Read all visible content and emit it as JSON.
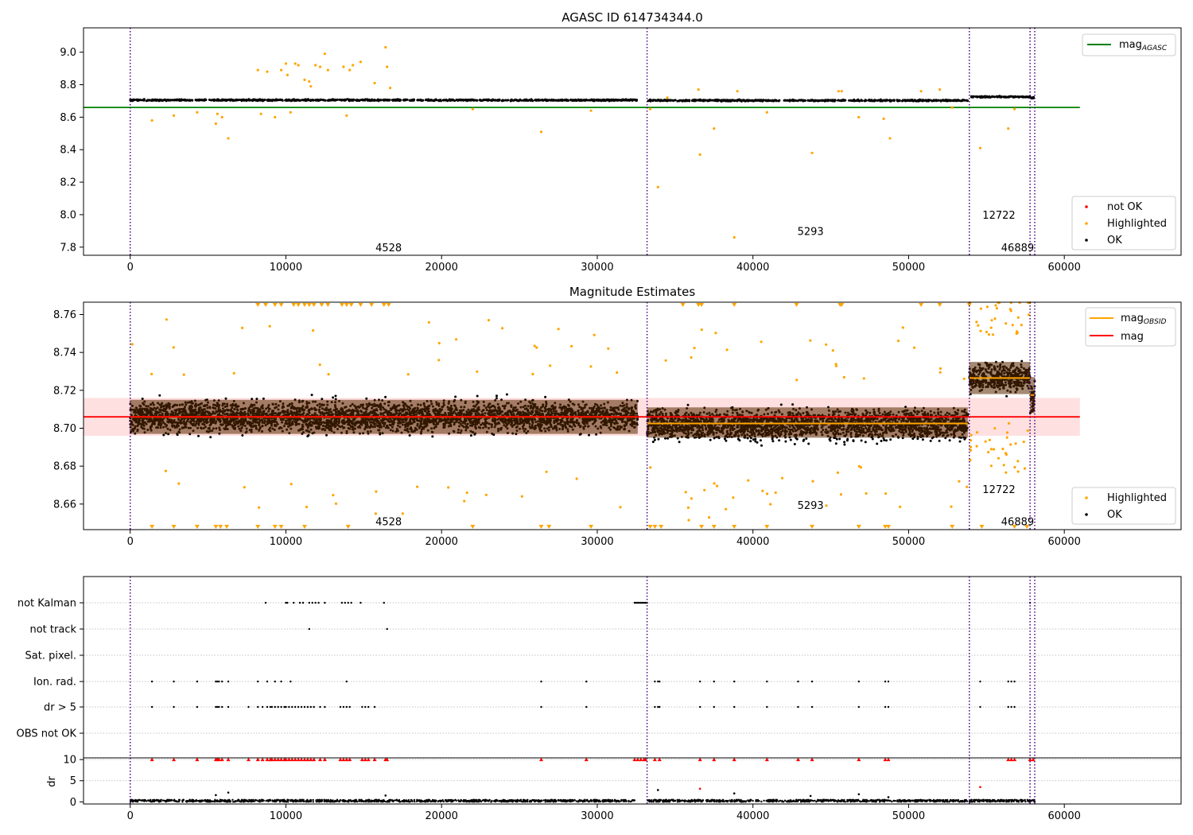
{
  "chart_data": [
    {
      "type": "scatter",
      "title": "AGASC ID 614734344.0",
      "xlim": [
        -3000,
        67500
      ],
      "ylim": [
        7.75,
        9.15
      ],
      "xticks": [
        0,
        10000,
        20000,
        30000,
        40000,
        50000,
        60000
      ],
      "yticks": [
        7.8,
        8.0,
        8.2,
        8.4,
        8.6,
        8.8,
        9.0
      ],
      "ytick_labels": [
        "7.8",
        "8.0",
        "8.2",
        "8.4",
        "8.6",
        "8.8",
        "9.0"
      ],
      "obs_boundaries": [
        0,
        33200,
        53900,
        57800,
        58100
      ],
      "obs_labels": [
        {
          "text": "4528",
          "x": 16600,
          "y": 7.8
        },
        {
          "text": "5293",
          "x": 43700,
          "y": 7.9
        },
        {
          "text": "12722",
          "x": 55800,
          "y": 8.0
        },
        {
          "text": "46889",
          "x": 57000,
          "y": 7.8
        }
      ],
      "reference_line": {
        "name": "mag_AGASC",
        "y": 8.66,
        "x": [
          -3000,
          61000
        ],
        "color": "#008000"
      },
      "ok_segments": [
        {
          "x": [
            0,
            32600
          ],
          "y": 8.705,
          "spread": 0.012
        },
        {
          "x": [
            33200,
            53800
          ],
          "y": 8.703,
          "spread": 0.012
        },
        {
          "x": [
            53900,
            57800
          ],
          "y": 8.725,
          "spread": 0.01
        },
        {
          "x": [
            57800,
            58100
          ],
          "y": 8.72,
          "spread": 0.012
        }
      ],
      "highlighted_points": [
        [
          1400,
          8.58
        ],
        [
          2800,
          8.61
        ],
        [
          4300,
          8.63
        ],
        [
          5500,
          8.56
        ],
        [
          5600,
          8.62
        ],
        [
          5900,
          8.6
        ],
        [
          6300,
          8.47
        ],
        [
          8200,
          8.89
        ],
        [
          8800,
          8.88
        ],
        [
          8400,
          8.62
        ],
        [
          9300,
          8.6
        ],
        [
          9700,
          8.89
        ],
        [
          10000,
          8.93
        ],
        [
          10100,
          8.86
        ],
        [
          10300,
          8.63
        ],
        [
          10600,
          8.93
        ],
        [
          10800,
          8.92
        ],
        [
          11200,
          8.83
        ],
        [
          11500,
          8.82
        ],
        [
          11600,
          8.79
        ],
        [
          11900,
          8.92
        ],
        [
          12200,
          8.91
        ],
        [
          12500,
          8.99
        ],
        [
          12700,
          8.89
        ],
        [
          13700,
          8.91
        ],
        [
          13900,
          8.61
        ],
        [
          14100,
          8.89
        ],
        [
          14300,
          8.92
        ],
        [
          14800,
          8.94
        ],
        [
          15700,
          8.81
        ],
        [
          16400,
          9.03
        ],
        [
          16500,
          8.91
        ],
        [
          16700,
          8.78
        ],
        [
          22000,
          8.65
        ],
        [
          26400,
          8.51
        ],
        [
          29600,
          8.64
        ],
        [
          33400,
          8.65
        ],
        [
          33900,
          8.17
        ],
        [
          34500,
          8.72
        ],
        [
          36500,
          8.77
        ],
        [
          36600,
          8.37
        ],
        [
          37500,
          8.53
        ],
        [
          38800,
          7.86
        ],
        [
          39000,
          8.76
        ],
        [
          40900,
          8.63
        ],
        [
          43800,
          8.38
        ],
        [
          45500,
          8.76
        ],
        [
          45700,
          8.76
        ],
        [
          46800,
          8.6
        ],
        [
          48400,
          8.59
        ],
        [
          48800,
          8.47
        ],
        [
          50800,
          8.76
        ],
        [
          52000,
          8.77
        ],
        [
          52800,
          8.66
        ],
        [
          54600,
          8.41
        ],
        [
          56400,
          8.53
        ],
        [
          56800,
          8.65
        ]
      ],
      "legend": [
        {
          "label": "not OK",
          "color": "#ff0000"
        },
        {
          "label": "Highlighted",
          "color": "#ffa500"
        },
        {
          "label": "OK",
          "color": "#000000"
        }
      ]
    },
    {
      "type": "scatter",
      "title": "Magnitude Estimates",
      "xlim": [
        -3000,
        67500
      ],
      "ylim": [
        8.6465,
        8.7665
      ],
      "xticks": [
        0,
        10000,
        20000,
        30000,
        40000,
        50000,
        60000
      ],
      "yticks": [
        8.66,
        8.68,
        8.7,
        8.72,
        8.74,
        8.76
      ],
      "ytick_labels": [
        "8.66",
        "8.68",
        "8.70",
        "8.72",
        "8.74",
        "8.76"
      ],
      "obs_boundaries": [
        0,
        33200,
        53900,
        57800,
        58100
      ],
      "obs_labels": [
        {
          "text": "4528",
          "x": 16600,
          "y": 8.651
        },
        {
          "text": "5293",
          "x": 43700,
          "y": 8.6595
        },
        {
          "text": "12722",
          "x": 55800,
          "y": 8.668
        },
        {
          "text": "46889",
          "x": 57000,
          "y": 8.651
        }
      ],
      "mag_line": {
        "name": "mag",
        "y": 8.706,
        "band": [
          8.696,
          8.716
        ],
        "x": [
          -3000,
          61000
        ],
        "color": "#ff0000"
      },
      "mag_obsid": [
        {
          "x": [
            0,
            32600
          ],
          "y": 8.706,
          "band": [
            8.697,
            8.715
          ]
        },
        {
          "x": [
            33200,
            53800
          ],
          "y": 8.7025,
          "band": [
            8.695,
            8.711
          ]
        },
        {
          "x": [
            53900,
            57800
          ],
          "y": 8.7265,
          "band": [
            8.718,
            8.735
          ]
        },
        {
          "x": [
            57800,
            58100
          ],
          "y": 8.7175,
          "band": [
            8.708,
            8.727
          ]
        }
      ],
      "ok_clouds": [
        {
          "x": [
            0,
            32600
          ],
          "center": 8.706,
          "spread": 0.014
        },
        {
          "x": [
            33200,
            53800
          ],
          "center": 8.702,
          "spread": 0.014
        },
        {
          "x": [
            53900,
            57800
          ],
          "center": 8.727,
          "spread": 0.012
        },
        {
          "x": [
            57800,
            58100
          ],
          "center": 8.716,
          "spread": 0.014
        }
      ],
      "highlighted_top_markers": [
        8200,
        8700,
        9300,
        9700,
        10500,
        10800,
        11200,
        11500,
        11800,
        12300,
        12700,
        13600,
        13900,
        14200,
        14800,
        15500,
        16300,
        16600,
        35500,
        36500,
        36700,
        38800,
        42800,
        45600,
        45700,
        50800,
        52000,
        53900
      ],
      "highlighted_bottom_markers": [
        1400,
        2800,
        4300,
        5500,
        5800,
        6200,
        8200,
        9300,
        9700,
        11200,
        14000,
        22000,
        26400,
        26900,
        29600,
        33400,
        33700,
        34100,
        36700,
        37500,
        38800,
        40900,
        43800,
        46800,
        48500,
        48700,
        52800,
        54700,
        56800,
        57600
      ],
      "legend": [
        {
          "label": "Highlighted",
          "color": "#ffa500"
        },
        {
          "label": "OK",
          "color": "#000000"
        }
      ],
      "legend_lines": [
        {
          "label": "mag_OBSID",
          "color": "#ffa500"
        },
        {
          "label": "mag",
          "color": "#ff0000"
        }
      ]
    },
    {
      "type": "scatter",
      "title": "",
      "xlim": [
        -3000,
        67500
      ],
      "xticks": [
        0,
        10000,
        20000,
        30000,
        40000,
        50000,
        60000
      ],
      "categories": [
        "not Kalman",
        "not track",
        "Sat. pixel.",
        "Ion. rad.",
        "dr > 5",
        "OBS not OK"
      ],
      "obs_boundaries": [
        0,
        33200,
        53900,
        57800,
        58100
      ],
      "flags": {
        "not Kalman": [
          8700,
          10000,
          10100,
          10500,
          10900,
          11100,
          11500,
          11700,
          11900,
          12100,
          12500,
          13600,
          13800,
          14000,
          14200,
          14800,
          16300,
          32400,
          32500,
          32600,
          32700,
          32800,
          32900,
          33000,
          33100,
          33200,
          57800
        ],
        "not track": [
          11500,
          16500
        ],
        "Sat. pixel.": [],
        "Ion. rad.": [
          1400,
          2800,
          4300,
          5500,
          5600,
          5700,
          5900,
          6300,
          8200,
          8800,
          9300,
          9700,
          10300,
          13900,
          26400,
          29300,
          33700,
          33900,
          34000,
          36600,
          37500,
          38800,
          40900,
          42900,
          43800,
          46800,
          48500,
          48700,
          54600,
          56400,
          56600,
          56800
        ],
        "dr > 5": [
          1400,
          2800,
          4300,
          5500,
          5600,
          5700,
          5900,
          6300,
          7600,
          8200,
          8500,
          8800,
          9000,
          9100,
          9300,
          9500,
          9700,
          9900,
          10000,
          10200,
          10400,
          10600,
          10800,
          11000,
          11200,
          11400,
          11600,
          11800,
          12200,
          12500,
          13500,
          13700,
          13900,
          14100,
          14900,
          15100,
          15300,
          15700,
          26400,
          29300,
          33700,
          33900,
          34000,
          36600,
          37500,
          38800,
          40900,
          42900,
          43800,
          46800,
          48500,
          48700,
          54600,
          56400,
          56600,
          56800
        ],
        "OBS not OK": []
      }
    },
    {
      "type": "scatter",
      "title": "",
      "ylabel": "dr",
      "xlim": [
        -3000,
        67500
      ],
      "ylim": [
        -0.5,
        10.4
      ],
      "xticks": [
        0,
        10000,
        20000,
        30000,
        40000,
        50000,
        60000
      ],
      "xtick_labels": [
        "0",
        "10000",
        "20000",
        "30000",
        "40000",
        "50000",
        "60000"
      ],
      "yticks": [
        0,
        5,
        10
      ],
      "ytick_labels": [
        "0",
        "5",
        "10"
      ],
      "obs_boundaries": [
        0,
        33200,
        53900,
        57800,
        58100
      ],
      "clipped_markers": [
        1400,
        2800,
        4300,
        5500,
        5600,
        5700,
        5900,
        6300,
        7600,
        8200,
        8500,
        8800,
        9000,
        9100,
        9300,
        9500,
        9700,
        9900,
        10000,
        10200,
        10400,
        10600,
        10800,
        11000,
        11200,
        11400,
        11600,
        11800,
        12200,
        12500,
        13500,
        13700,
        13900,
        14100,
        14900,
        15100,
        15300,
        15700,
        16400,
        16500,
        26400,
        29300,
        32400,
        32600,
        32800,
        33000,
        33100,
        33700,
        34000,
        36600,
        37500,
        38800,
        40900,
        42900,
        43800,
        46800,
        48500,
        48700,
        56400,
        56600,
        56800,
        57800,
        58000
      ],
      "outliers": [
        [
          5500,
          1.6
        ],
        [
          6300,
          2.2
        ],
        [
          16400,
          1.5
        ],
        [
          33900,
          2.8
        ],
        [
          36600,
          3.1
        ],
        [
          38800,
          2.0
        ],
        [
          43700,
          1.4
        ],
        [
          46800,
          1.8
        ],
        [
          54600,
          3.5
        ],
        [
          48700,
          1.1
        ]
      ],
      "band": {
        "x_segments": [
          [
            0,
            32600
          ],
          [
            33200,
            53800
          ],
          [
            53900,
            58100
          ]
        ],
        "low": 0.0,
        "high": 0.5
      }
    }
  ]
}
